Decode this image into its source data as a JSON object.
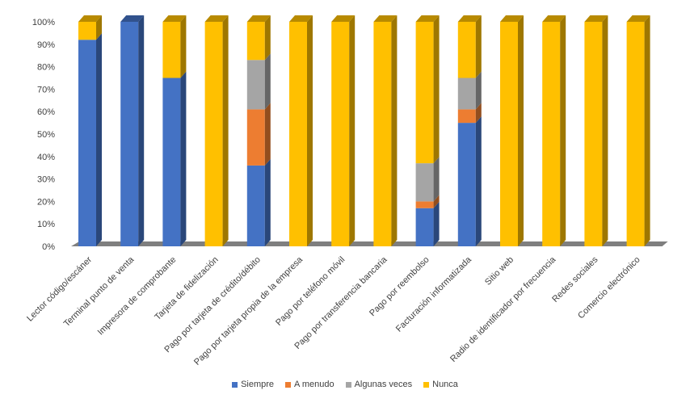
{
  "chart_data": {
    "type": "bar",
    "stacked": true,
    "percent": true,
    "three_d": true,
    "categories": [
      "Lector código/escáner",
      "Terminal punto de venta",
      "Impresora de comprobante",
      "Tarjeta de fidelización",
      "Pago por tarjeta de crédito/débito",
      "Pago por tarjeta propia de la empresa",
      "Pago por teléfono móvil",
      "Pago por transferencia bancaria",
      "Pago por reembolso",
      "Facturación informatizada",
      "Sitio web",
      "Radio de identificador por frecuencia",
      "Redes sociales",
      "Comercio electrónico"
    ],
    "series": [
      {
        "name": "Siempre",
        "color": "#4472C4",
        "values": [
          92,
          100,
          75,
          0,
          36,
          0,
          0,
          0,
          17,
          55,
          0,
          0,
          0,
          0
        ]
      },
      {
        "name": "A menudo",
        "color": "#ED7D31",
        "values": [
          0,
          0,
          0,
          0,
          25,
          0,
          0,
          0,
          3,
          6,
          0,
          0,
          0,
          0
        ]
      },
      {
        "name": "Algunas veces",
        "color": "#A5A5A5",
        "values": [
          0,
          0,
          0,
          0,
          22,
          0,
          0,
          0,
          17,
          14,
          0,
          0,
          0,
          0
        ]
      },
      {
        "name": "Nunca",
        "color": "#FFC000",
        "values": [
          8,
          0,
          25,
          100,
          17,
          100,
          100,
          100,
          63,
          25,
          100,
          100,
          100,
          100
        ]
      }
    ],
    "y_ticks": [
      "0%",
      "10%",
      "20%",
      "30%",
      "40%",
      "50%",
      "60%",
      "70%",
      "80%",
      "90%",
      "100%"
    ],
    "ylim": [
      0,
      100
    ],
    "grid": false,
    "legend_position": "bottom",
    "title": "",
    "xlabel": "",
    "ylabel": ""
  }
}
